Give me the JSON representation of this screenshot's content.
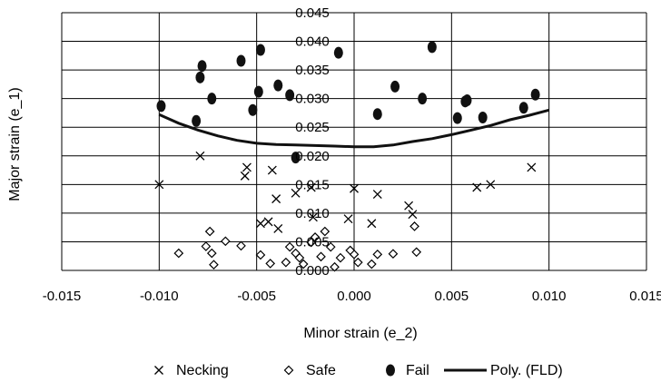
{
  "chart_data": {
    "type": "scatter",
    "xlabel": "Minor strain (e_2)",
    "ylabel": "Major strain (e_1)",
    "xlim": [
      -0.015,
      0.015
    ],
    "ylim": [
      0.0,
      0.045
    ],
    "x_ticks": [
      "-0.015",
      "-0.010",
      "-0.005",
      "0.000",
      "0.005",
      "0.010",
      "0.015"
    ],
    "y_ticks": [
      "0.000",
      "0.005",
      "0.010",
      "0.015",
      "0.020",
      "0.025",
      "0.030",
      "0.035",
      "0.040",
      "0.045"
    ],
    "grid": "horizontal and vertical",
    "legend_position": "bottom",
    "series": [
      {
        "name": "Necking",
        "marker": "x",
        "points": [
          [
            -0.01,
            0.015
          ],
          [
            -0.0079,
            0.02
          ],
          [
            -0.0055,
            0.018
          ],
          [
            -0.0056,
            0.0165
          ],
          [
            -0.0042,
            0.0175
          ],
          [
            -0.004,
            0.0125
          ],
          [
            -0.0048,
            0.0082
          ],
          [
            -0.0044,
            0.0085
          ],
          [
            -0.0039,
            0.0073
          ],
          [
            -0.003,
            0.0135
          ],
          [
            -0.0022,
            0.0145
          ],
          [
            -0.0021,
            0.0093
          ],
          [
            0.0,
            0.0143
          ],
          [
            0.0012,
            0.0133
          ],
          [
            0.0009,
            0.0082
          ],
          [
            -0.0003,
            0.009
          ],
          [
            0.0028,
            0.0113
          ],
          [
            0.003,
            0.0098
          ],
          [
            0.0063,
            0.0145
          ],
          [
            0.007,
            0.015
          ],
          [
            0.0091,
            0.018
          ]
        ]
      },
      {
        "name": "Safe",
        "marker": "diamond",
        "points": [
          [
            -0.009,
            0.003
          ],
          [
            -0.0074,
            0.0068
          ],
          [
            -0.0076,
            0.0042
          ],
          [
            -0.0073,
            0.003
          ],
          [
            -0.0072,
            0.001
          ],
          [
            -0.0066,
            0.0051
          ],
          [
            -0.0058,
            0.0043
          ],
          [
            -0.0048,
            0.0027
          ],
          [
            -0.0043,
            0.0012
          ],
          [
            -0.0035,
            0.0014
          ],
          [
            -0.0033,
            0.0041
          ],
          [
            -0.003,
            0.003
          ],
          [
            -0.0028,
            0.0022
          ],
          [
            -0.0026,
            0.0011
          ],
          [
            -0.0022,
            0.0049
          ],
          [
            -0.002,
            0.0058
          ],
          [
            -0.0017,
            0.0024
          ],
          [
            -0.0015,
            0.0068
          ],
          [
            -0.0012,
            0.0041
          ],
          [
            -0.001,
            0.0006
          ],
          [
            -0.0007,
            0.0022
          ],
          [
            0.0,
            0.0028
          ],
          [
            -0.0002,
            0.0035
          ],
          [
            0.0002,
            0.0014
          ],
          [
            0.0009,
            0.0011
          ],
          [
            0.0012,
            0.0028
          ],
          [
            0.002,
            0.0029
          ],
          [
            0.0031,
            0.0077
          ],
          [
            0.0032,
            0.0032
          ]
        ]
      },
      {
        "name": "Fail",
        "marker": "circle",
        "points": [
          [
            -0.0099,
            0.0287
          ],
          [
            -0.0081,
            0.0261
          ],
          [
            -0.0078,
            0.0357
          ],
          [
            -0.0079,
            0.0337
          ],
          [
            -0.0073,
            0.03
          ],
          [
            -0.0058,
            0.0366
          ],
          [
            -0.0052,
            0.028
          ],
          [
            -0.0049,
            0.0312
          ],
          [
            -0.0048,
            0.0385
          ],
          [
            -0.0039,
            0.0323
          ],
          [
            -0.0033,
            0.0306
          ],
          [
            -0.003,
            0.0197
          ],
          [
            -0.0008,
            0.038
          ],
          [
            0.0012,
            0.0273
          ],
          [
            0.0021,
            0.0321
          ],
          [
            0.0035,
            0.03
          ],
          [
            0.004,
            0.039
          ],
          [
            0.0053,
            0.0266
          ],
          [
            0.0057,
            0.0295
          ],
          [
            0.0058,
            0.0297
          ],
          [
            0.0066,
            0.0267
          ],
          [
            0.0087,
            0.0284
          ],
          [
            0.0093,
            0.0307
          ]
        ]
      },
      {
        "name": "Poly. (FLD)",
        "marker": "line",
        "points": [
          [
            -0.01,
            0.0272
          ],
          [
            -0.009,
            0.0257
          ],
          [
            -0.008,
            0.0245
          ],
          [
            -0.007,
            0.0235
          ],
          [
            -0.006,
            0.0227
          ],
          [
            -0.005,
            0.0222
          ],
          [
            -0.004,
            0.022
          ],
          [
            -0.003,
            0.0219
          ],
          [
            -0.002,
            0.0218
          ],
          [
            -0.001,
            0.0217
          ],
          [
            0.0,
            0.0216
          ],
          [
            0.001,
            0.0216
          ],
          [
            0.002,
            0.0219
          ],
          [
            0.003,
            0.0225
          ],
          [
            0.004,
            0.023
          ],
          [
            0.005,
            0.0237
          ],
          [
            0.006,
            0.0245
          ],
          [
            0.007,
            0.0253
          ],
          [
            0.008,
            0.0263
          ],
          [
            0.009,
            0.0271
          ],
          [
            0.01,
            0.028
          ]
        ]
      }
    ]
  }
}
